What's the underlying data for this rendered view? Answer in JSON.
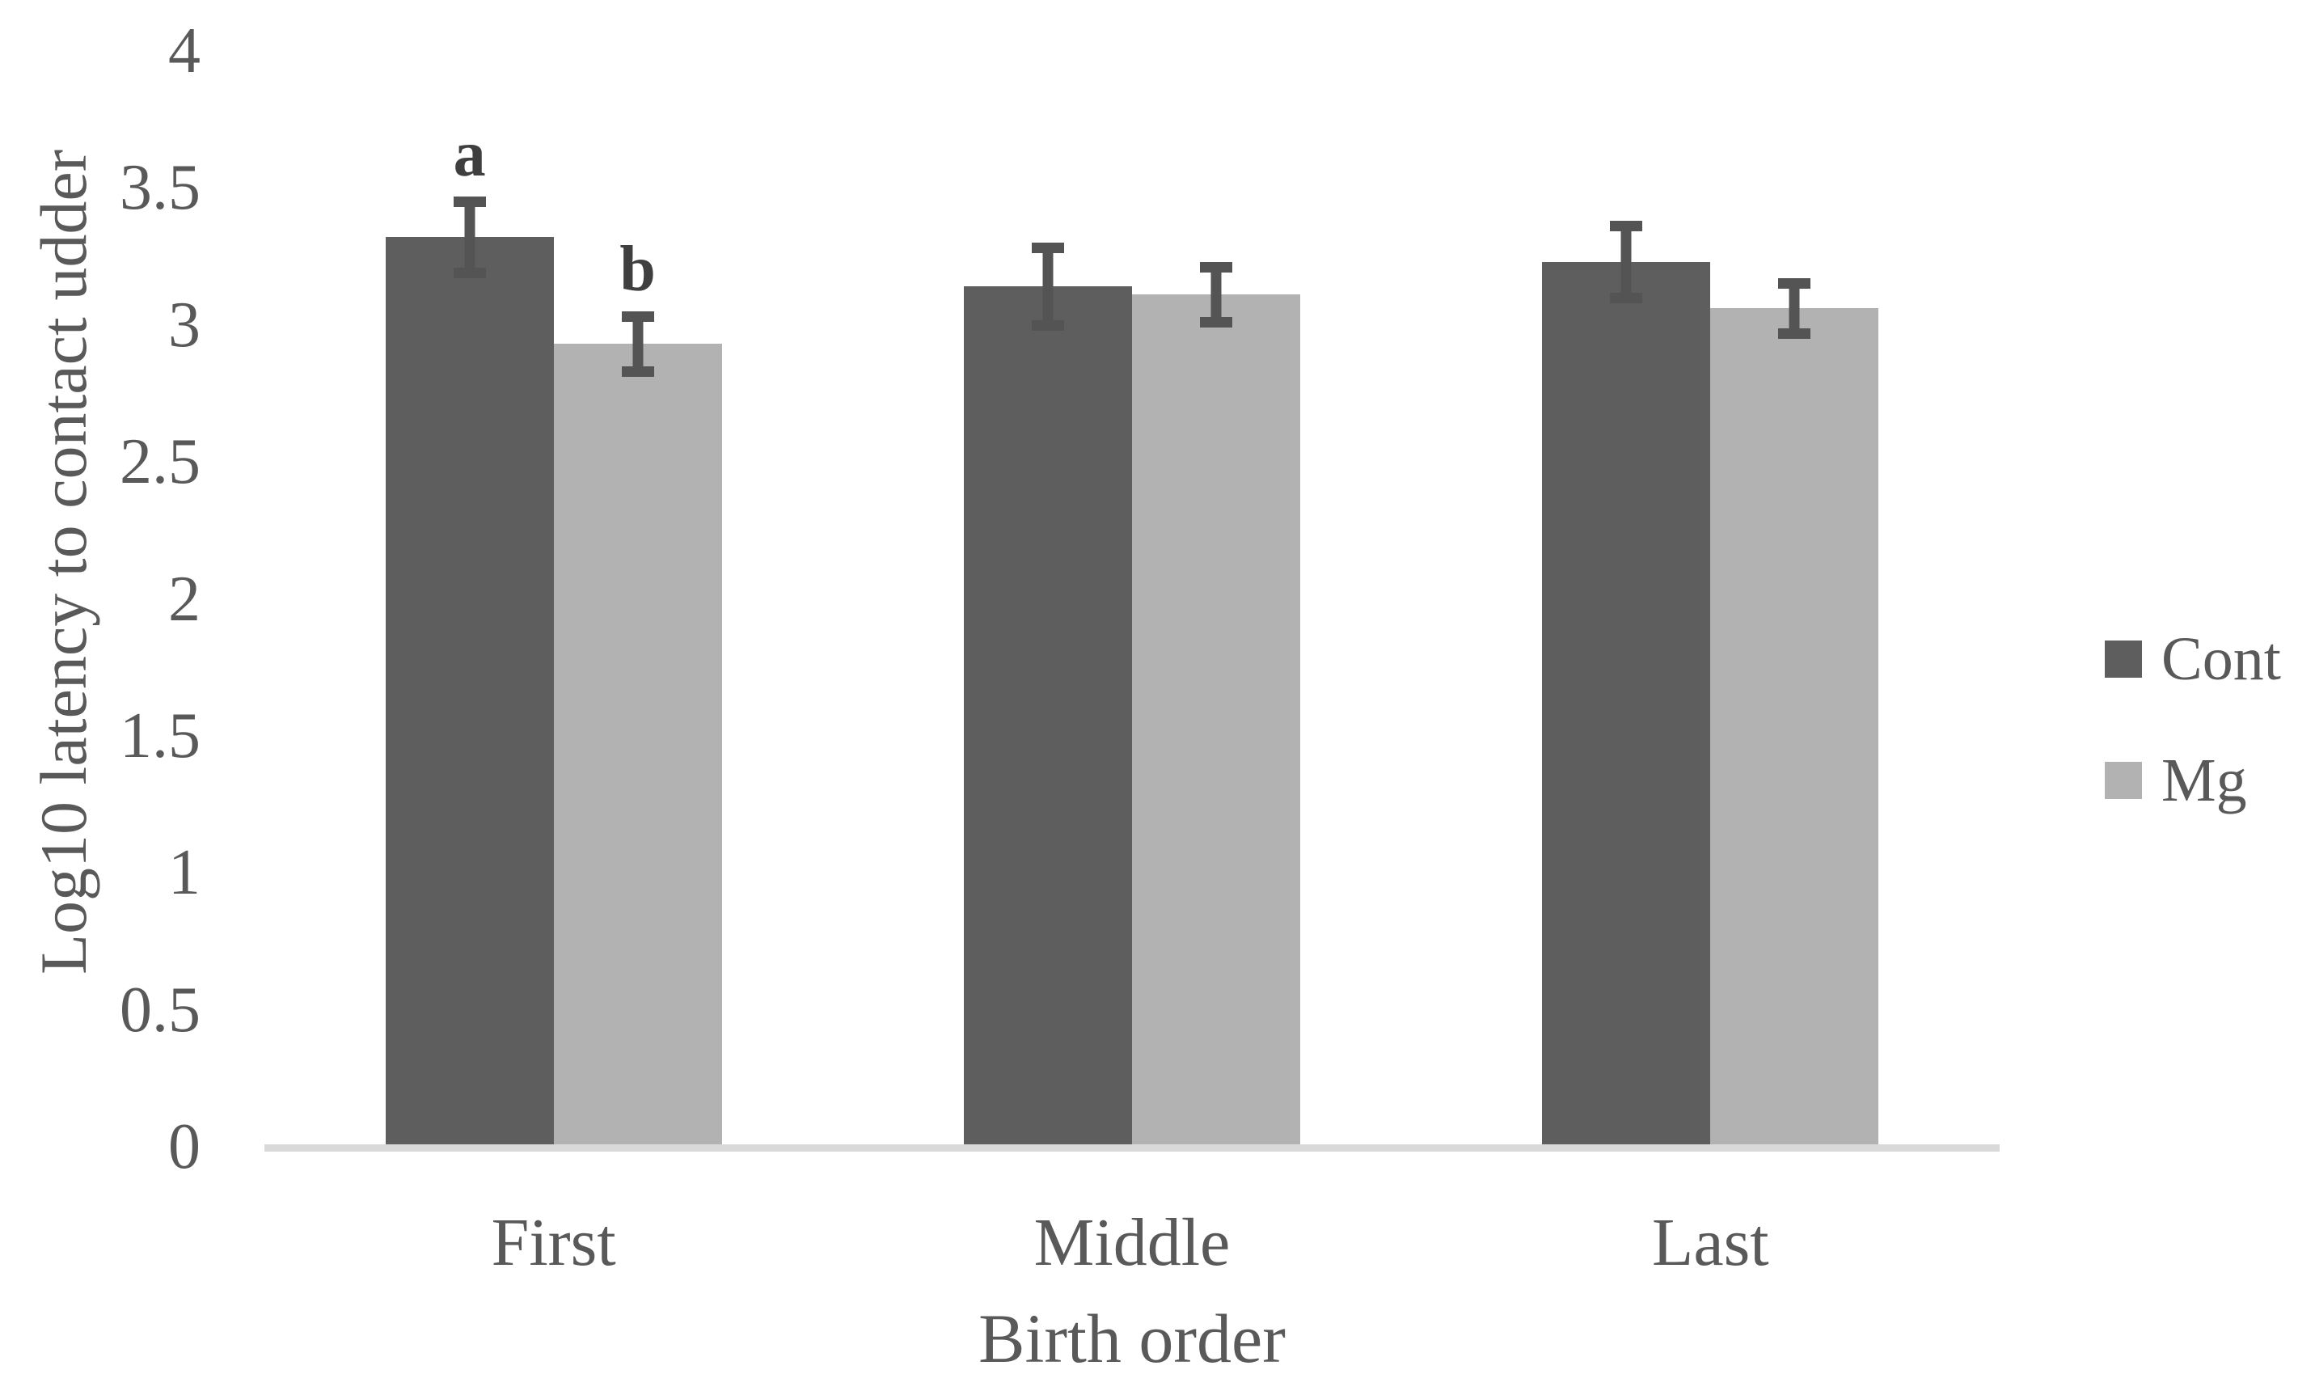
{
  "chart_data": {
    "type": "bar",
    "title": "",
    "categories": [
      "First",
      "Middle",
      "Last"
    ],
    "series": [
      {
        "name": "Cont",
        "color": "#5e5e5e",
        "values": [
          3.32,
          3.14,
          3.23
        ],
        "errors": [
          0.15,
          0.16,
          0.15
        ]
      },
      {
        "name": "Mg",
        "color": "#b2b2b2",
        "values": [
          2.93,
          3.11,
          3.06
        ],
        "errors": [
          0.12,
          0.12,
          0.11
        ]
      }
    ],
    "xlabel": "Birth order",
    "ylabel": "Log10 latency to contact udder",
    "ylim": [
      0,
      4
    ],
    "ytick_step": 0.5,
    "yticks": [
      "0",
      "0.5",
      "1",
      "1.5",
      "2",
      "2.5",
      "3",
      "3.5",
      "4"
    ],
    "grid": false,
    "legend_position": "right",
    "legend_entries": [
      "Cont",
      "Mg"
    ],
    "annotations": [
      {
        "text": "a",
        "series": "Cont",
        "category": "First"
      },
      {
        "text": "b",
        "series": "Mg",
        "category": "First"
      }
    ],
    "colors": {
      "error_bar": "#545454",
      "axis_line": "#d9d9d9",
      "text": "#595959",
      "annotation": "#3f3f3f"
    }
  }
}
